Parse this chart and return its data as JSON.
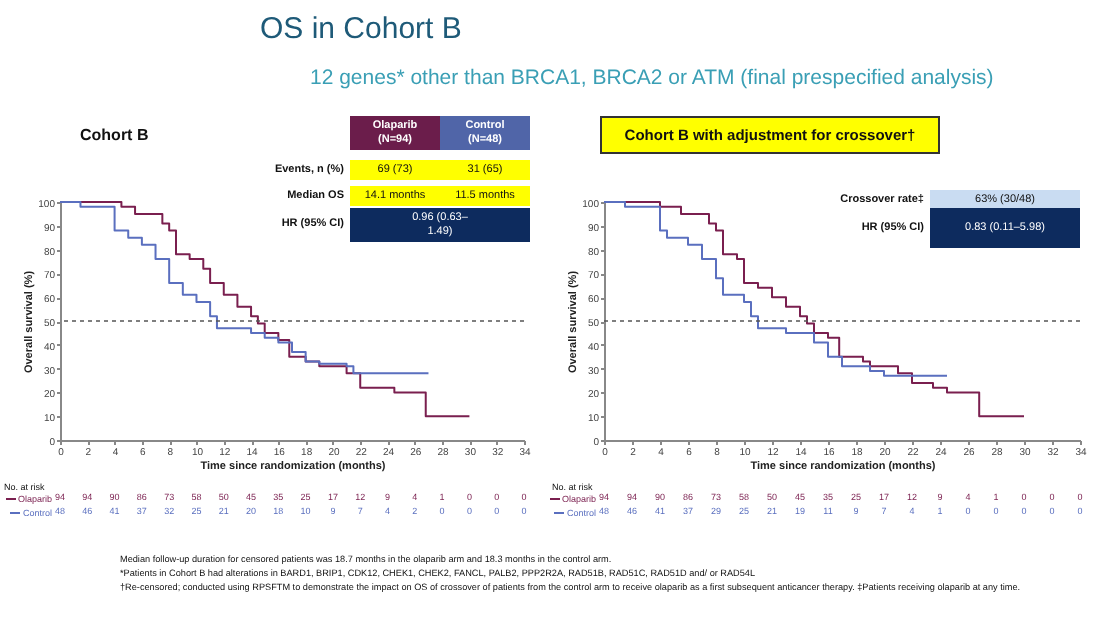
{
  "chart_data": [
    {
      "type": "step",
      "title": "OS in Cohort B",
      "subtitle": "12 genes* other than BRCA1, BRCA2 or ATM (final prespecified analysis)",
      "xlabel": "Time since randomization (months)",
      "ylabel": "Overall survival (%)",
      "xlim": [
        0,
        34
      ],
      "xticks": [
        0,
        2,
        4,
        6,
        8,
        10,
        12,
        14,
        16,
        18,
        20,
        22,
        24,
        26,
        28,
        30,
        32,
        34
      ],
      "ylim": [
        0,
        100
      ],
      "yticks": [
        0,
        10,
        20,
        30,
        40,
        50,
        60,
        70,
        80,
        90,
        100
      ],
      "grid": false,
      "legend": "bottom left",
      "series": [
        {
          "name": "Olaparib",
          "color": "#7a1f4f",
          "x": [
            0,
            4.5,
            5.5,
            7.5,
            8,
            8.5,
            9.5,
            10.5,
            11,
            12,
            13,
            14,
            14.5,
            15,
            16,
            16.8,
            18,
            19,
            21,
            22,
            24,
            24.5,
            26.8,
            30
          ],
          "values": [
            100,
            98,
            95,
            91,
            88,
            78,
            76,
            72,
            66,
            61,
            56,
            52,
            49,
            45,
            42,
            35,
            33,
            31,
            28,
            22,
            22,
            20,
            10,
            10
          ]
        },
        {
          "name": "Control",
          "color": "#5a6fbf",
          "x": [
            0,
            1.5,
            4,
            5,
            6,
            7,
            8,
            9,
            10,
            11,
            11.5,
            14,
            15,
            16,
            17,
            18,
            19,
            21,
            21.5,
            27
          ],
          "values": [
            100,
            98,
            88,
            85,
            82,
            76,
            66,
            61,
            58,
            52,
            47,
            45,
            43,
            41,
            37,
            33,
            32,
            31,
            28,
            28
          ]
        }
      ],
      "ref_lines": [
        {
          "axis": "y",
          "value": 50,
          "color": "#555555",
          "line_style": "dotted"
        }
      ],
      "annotations": [
        "Cohort B",
        "Olaparib (N=94)",
        "Control (N=48)",
        "Events, n (%)",
        "69 (73)",
        "31 (65)",
        "Median OS",
        "14.1 months",
        "11.5 months",
        "HR (95% CI)",
        "0.96 (0.63–1.49)",
        "No. at risk",
        "94 94 90 86 73 58 50 45 35 25 17 12 9 4 1 0 0 0",
        "48 46 41 37 32 25 21 20 18 10 9 7 4 2 0 0 0 0",
        "Median follow-up duration for censored patients was 18.7 months in the olaparib arm and 18.3 months in the control arm.",
        "*Patients in Cohort B had alterations in BARD1, BRIP1, CDK12, CHEK1, CHEK2, FANCL, PALB2, PPP2R2A, RAD51B, RAD51C, RAD51D and/ or RAD54L",
        "†Re-censored; conducted using RPSFTM to demonstrate the impact on OS of crossover of patients from the control arm to receive olaparib as a first subsequent anticancer therapy. ‡Patients receiving olaparib at any time."
      ]
    },
    {
      "type": "step",
      "xlabel": "Time since randomization (months)",
      "ylabel": "Overall survival (%)",
      "xlim": [
        0,
        34
      ],
      "xticks": [
        0,
        2,
        4,
        6,
        8,
        10,
        12,
        14,
        16,
        18,
        20,
        22,
        24,
        26,
        28,
        30,
        32,
        34
      ],
      "ylim": [
        0,
        100
      ],
      "yticks": [
        0,
        10,
        20,
        30,
        40,
        50,
        60,
        70,
        80,
        90,
        100
      ],
      "grid": false,
      "legend": "bottom left",
      "series": [
        {
          "name": "Olaparib",
          "color": "#7a1f4f",
          "x": [
            0,
            4,
            5.5,
            7.5,
            8,
            8.5,
            9.5,
            10,
            11,
            12,
            13,
            14,
            14.5,
            15,
            16,
            16.8,
            18.5,
            19,
            21,
            22,
            23.5,
            24.5,
            26.8,
            30
          ],
          "values": [
            100,
            98,
            95,
            91,
            88,
            78,
            76,
            66,
            64,
            60,
            56,
            52,
            49,
            45,
            43,
            35,
            33,
            31,
            28,
            24,
            22,
            20,
            10,
            10
          ]
        },
        {
          "name": "Control",
          "color": "#5a6fbf",
          "x": [
            0,
            1.5,
            4,
            4.5,
            6,
            7,
            8,
            8.5,
            10,
            10.5,
            11,
            13,
            15,
            16,
            17,
            19,
            20,
            24.5
          ],
          "values": [
            100,
            98,
            88,
            85,
            82,
            76,
            68,
            61,
            58,
            52,
            47,
            45,
            41,
            35,
            31,
            29,
            27,
            27
          ]
        }
      ],
      "ref_lines": [
        {
          "axis": "y",
          "value": 50,
          "color": "#555555",
          "line_style": "dotted"
        }
      ],
      "annotations": [
        "Cohort B with adjustment for crossover†",
        "Crossover rate‡",
        "63% (30/48)",
        "HR (95% CI)",
        "0.83 (0.11–5.98)",
        "No. at risk",
        "94 94 90 86 73 58 50 45 35 25 17 12 9 4 1 0 0 0",
        "48 46 41 37 29 25 21 19 11 9 7 4 1 0 0 0 0 0"
      ]
    }
  ]
}
